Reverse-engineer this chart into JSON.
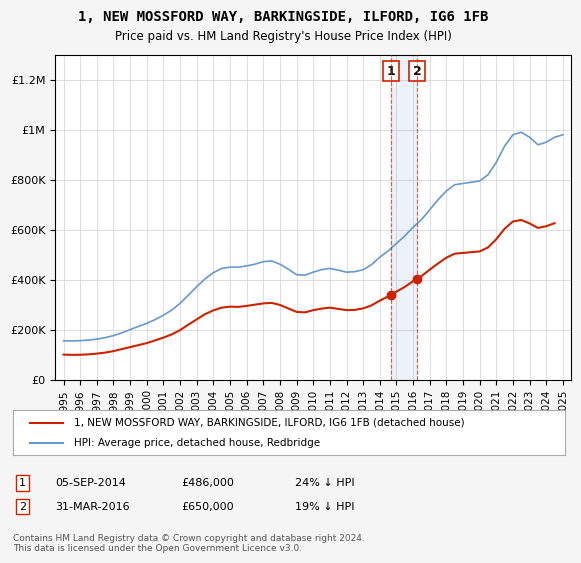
{
  "title": "1, NEW MOSSFORD WAY, BARKINGSIDE, ILFORD, IG6 1FB",
  "subtitle": "Price paid vs. HM Land Registry's House Price Index (HPI)",
  "hpi_color": "#6699cc",
  "price_color": "#cc2200",
  "annotation_box_color": "#cc2200",
  "background_color": "#f5f5f5",
  "plot_background": "#ffffff",
  "ylim": [
    0,
    1300000
  ],
  "yticks": [
    0,
    200000,
    400000,
    600000,
    800000,
    1000000,
    1200000
  ],
  "ytick_labels": [
    "£0",
    "£200K",
    "£400K",
    "£600K",
    "£800K",
    "£1M",
    "£1.2M"
  ],
  "xlabel_start": 1995,
  "xlabel_end": 2025,
  "transactions": [
    {
      "label": "1",
      "date": "05-SEP-2014",
      "price": 486000,
      "x": 2014.67,
      "hpi_pct": "24% ↓ HPI"
    },
    {
      "label": "2",
      "date": "31-MAR-2016",
      "price": 650000,
      "x": 2016.25,
      "hpi_pct": "19% ↓ HPI"
    }
  ],
  "legend_entry1": "1, NEW MOSSFORD WAY, BARKINGSIDE, ILFORD, IG6 1FB (detached house)",
  "legend_entry2": "HPI: Average price, detached house, Redbridge",
  "footnote": "Contains HM Land Registry data © Crown copyright and database right 2024.\nThis data is licensed under the Open Government Licence v3.0.",
  "hpi_x": [
    1995,
    1995.5,
    1996,
    1996.5,
    1997,
    1997.5,
    1998,
    1998.5,
    1999,
    1999.5,
    2000,
    2000.5,
    2001,
    2001.5,
    2002,
    2002.5,
    2003,
    2003.5,
    2004,
    2004.5,
    2005,
    2005.5,
    2006,
    2006.5,
    2007,
    2007.5,
    2008,
    2008.5,
    2009,
    2009.5,
    2010,
    2010.5,
    2011,
    2011.5,
    2012,
    2012.5,
    2013,
    2013.5,
    2014,
    2014.5,
    2015,
    2015.5,
    2016,
    2016.5,
    2017,
    2017.5,
    2018,
    2018.5,
    2019,
    2019.5,
    2020,
    2020.5,
    2021,
    2021.5,
    2022,
    2022.5,
    2023,
    2023.5,
    2024,
    2024.5,
    2025
  ],
  "hpi_y": [
    155000,
    155000,
    156000,
    158000,
    162000,
    168000,
    176000,
    187000,
    200000,
    213000,
    225000,
    240000,
    258000,
    278000,
    305000,
    338000,
    372000,
    403000,
    428000,
    445000,
    450000,
    450000,
    455000,
    462000,
    472000,
    475000,
    462000,
    442000,
    420000,
    418000,
    430000,
    440000,
    445000,
    438000,
    430000,
    432000,
    440000,
    460000,
    490000,
    515000,
    545000,
    575000,
    610000,
    640000,
    680000,
    720000,
    755000,
    780000,
    785000,
    790000,
    795000,
    820000,
    870000,
    935000,
    980000,
    990000,
    970000,
    940000,
    950000,
    970000,
    980000
  ],
  "price_x": [
    1995,
    1995.5,
    1996,
    1996.5,
    1997,
    1997.5,
    1998,
    1998.5,
    1999,
    1999.5,
    2000,
    2000.5,
    2001,
    2001.5,
    2002,
    2002.5,
    2003,
    2003.5,
    2004,
    2004.5,
    2005,
    2005.5,
    2006,
    2006.5,
    2007,
    2007.5,
    2008,
    2008.5,
    2009,
    2009.5,
    2010,
    2010.5,
    2011,
    2011.5,
    2012,
    2012.5,
    2013,
    2013.5,
    2014,
    2014.5,
    2015,
    2015.5,
    2016,
    2016.5,
    2017,
    2017.5,
    2018,
    2018.5,
    2019,
    2019.5,
    2020,
    2020.5,
    2021,
    2021.5,
    2022,
    2022.5,
    2023,
    2023.5,
    2024,
    2024.5
  ],
  "price_y": [
    100000,
    99000,
    99500,
    101000,
    104000,
    108000,
    114000,
    122000,
    130000,
    138000,
    146000,
    157000,
    168000,
    181000,
    198000,
    220000,
    241000,
    262000,
    277000,
    288000,
    292000,
    291000,
    295000,
    300000,
    305000,
    307000,
    299000,
    285000,
    271000,
    269000,
    278000,
    284000,
    288000,
    283000,
    278000,
    279000,
    285000,
    297000,
    316000,
    333000,
    352000,
    371000,
    394000,
    414000,
    440000,
    465000,
    488000,
    504000,
    507000,
    510000,
    513000,
    529000,
    562000,
    604000,
    633000,
    639000,
    625000,
    607000,
    614000,
    626000
  ]
}
